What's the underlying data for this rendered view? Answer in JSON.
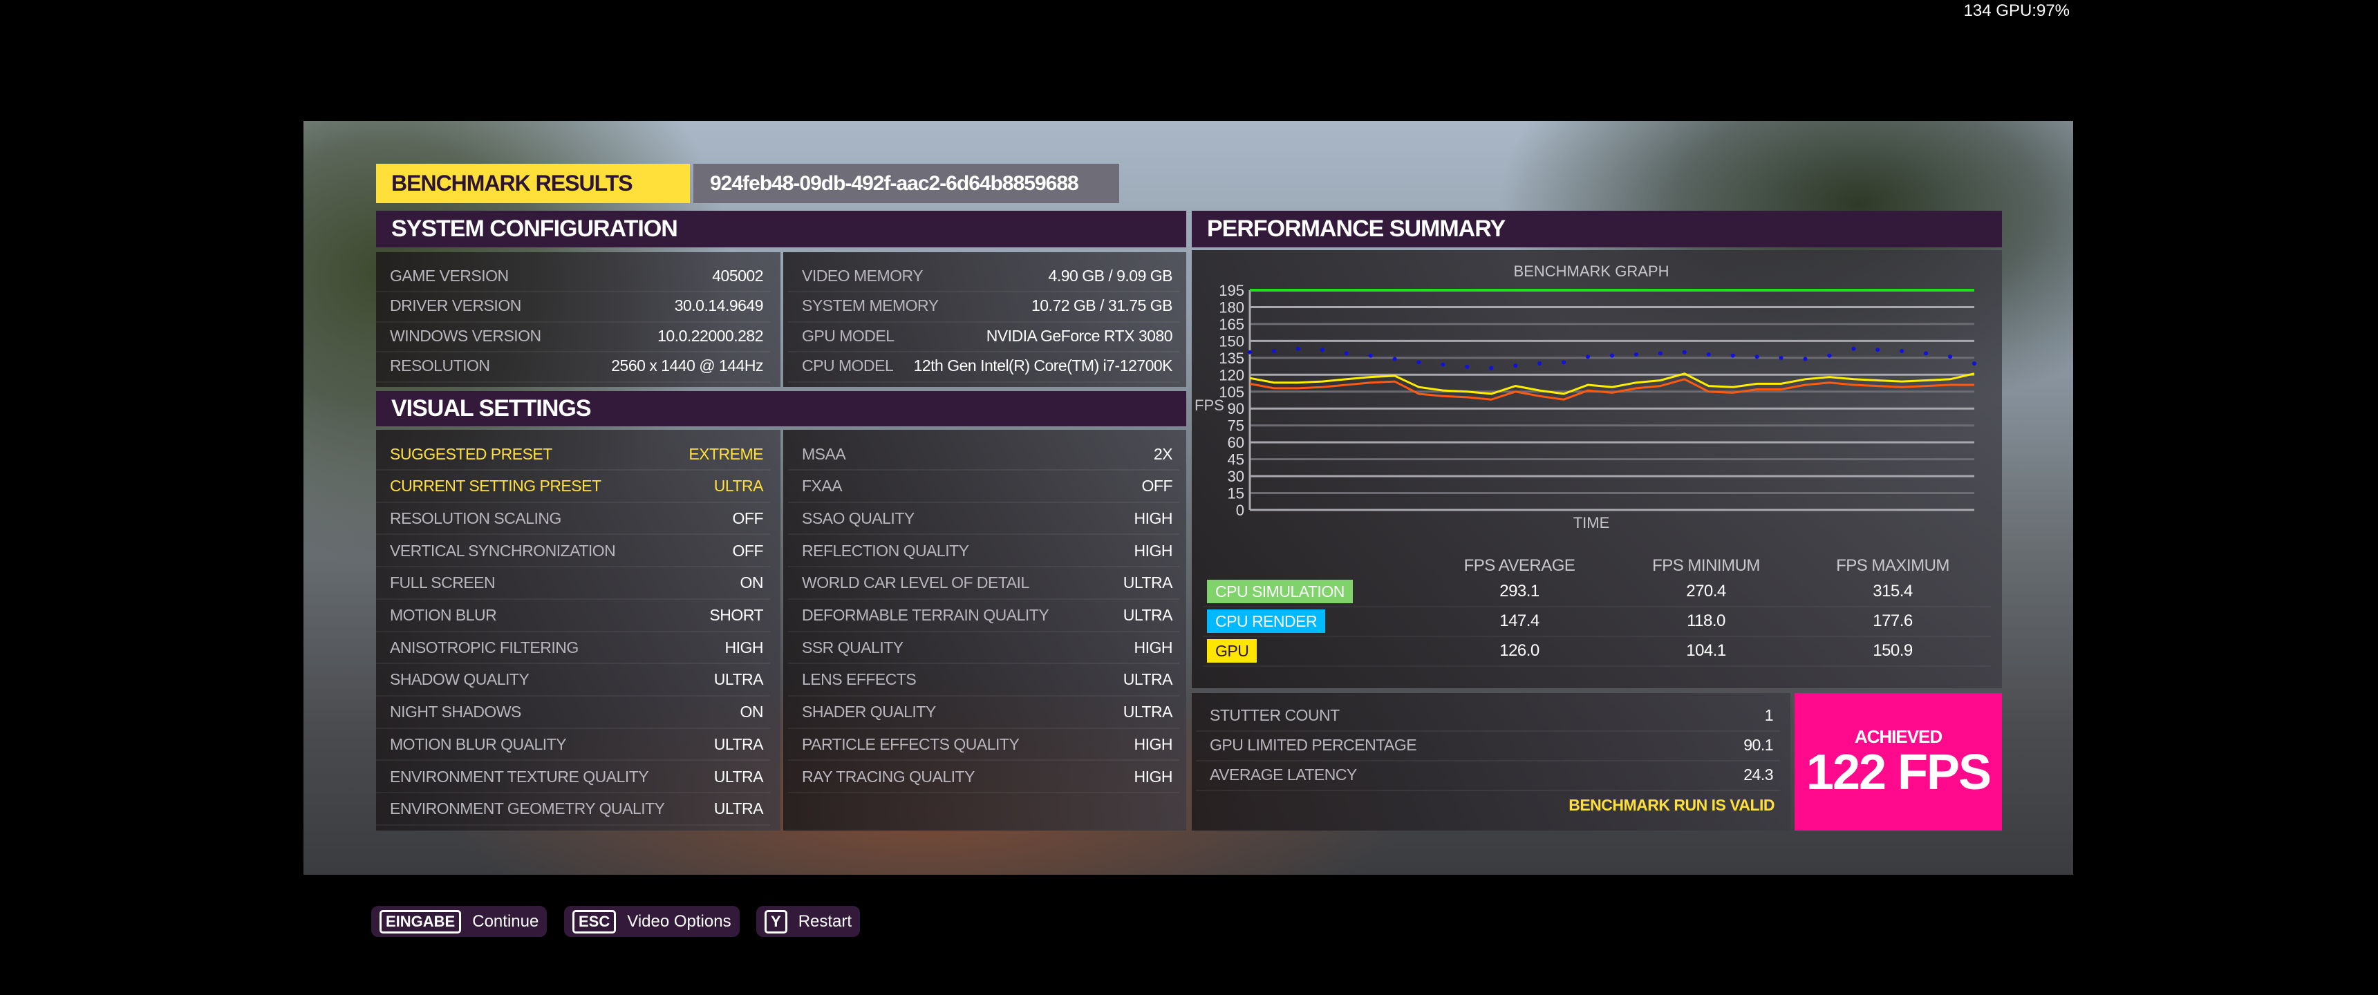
{
  "overlay": {
    "fps_gpu": "134 GPU:97%"
  },
  "header": {
    "title": "BENCHMARK RESULTS",
    "run_id": "924feb48-09db-492f-aac2-6d64b8859688"
  },
  "system_configuration": {
    "title": "SYSTEM CONFIGURATION",
    "left": [
      {
        "label": "GAME VERSION",
        "value": "405002"
      },
      {
        "label": "DRIVER VERSION",
        "value": "30.0.14.9649"
      },
      {
        "label": "WINDOWS VERSION",
        "value": "10.0.22000.282"
      },
      {
        "label": "RESOLUTION",
        "value": "2560 x 1440 @ 144Hz"
      }
    ],
    "right": [
      {
        "label": "VIDEO MEMORY",
        "value": "4.90 GB / 9.09 GB"
      },
      {
        "label": "SYSTEM MEMORY",
        "value": "10.72 GB / 31.75 GB"
      },
      {
        "label": "GPU MODEL",
        "value": "NVIDIA GeForce RTX 3080"
      },
      {
        "label": "CPU MODEL",
        "value": "12th Gen Intel(R) Core(TM) i7-12700K"
      }
    ]
  },
  "visual_settings": {
    "title": "VISUAL SETTINGS",
    "left": [
      {
        "label": "SUGGESTED PRESET",
        "value": "EXTREME",
        "highlight": true
      },
      {
        "label": "CURRENT SETTING PRESET",
        "value": "ULTRA",
        "highlight": true
      },
      {
        "label": "RESOLUTION SCALING",
        "value": "OFF"
      },
      {
        "label": "VERTICAL SYNCHRONIZATION",
        "value": "OFF"
      },
      {
        "label": "FULL SCREEN",
        "value": "ON"
      },
      {
        "label": "MOTION BLUR",
        "value": "SHORT"
      },
      {
        "label": "ANISOTROPIC FILTERING",
        "value": "HIGH"
      },
      {
        "label": "SHADOW QUALITY",
        "value": "ULTRA"
      },
      {
        "label": "NIGHT SHADOWS",
        "value": "ON"
      },
      {
        "label": "MOTION BLUR QUALITY",
        "value": "ULTRA"
      },
      {
        "label": "ENVIRONMENT TEXTURE QUALITY",
        "value": "ULTRA"
      },
      {
        "label": "ENVIRONMENT GEOMETRY QUALITY",
        "value": "ULTRA"
      }
    ],
    "right": [
      {
        "label": "MSAA",
        "value": "2X"
      },
      {
        "label": "FXAA",
        "value": "OFF"
      },
      {
        "label": "SSAO QUALITY",
        "value": "HIGH"
      },
      {
        "label": "REFLECTION QUALITY",
        "value": "HIGH"
      },
      {
        "label": "WORLD CAR LEVEL OF DETAIL",
        "value": "ULTRA"
      },
      {
        "label": "DEFORMABLE TERRAIN QUALITY",
        "value": "ULTRA"
      },
      {
        "label": "SSR QUALITY",
        "value": "HIGH"
      },
      {
        "label": "LENS EFFECTS",
        "value": "ULTRA"
      },
      {
        "label": "SHADER QUALITY",
        "value": "ULTRA"
      },
      {
        "label": "PARTICLE EFFECTS QUALITY",
        "value": "HIGH"
      },
      {
        "label": "RAY TRACING QUALITY",
        "value": "HIGH"
      }
    ]
  },
  "performance": {
    "title": "PERFORMANCE SUMMARY",
    "columns": [
      "FPS AVERAGE",
      "FPS MINIMUM",
      "FPS MAXIMUM"
    ],
    "rows": [
      {
        "label": "CPU SIMULATION",
        "color": "#7fd36a",
        "text_color": "#ffffff",
        "values": [
          "293.1",
          "270.4",
          "315.4"
        ]
      },
      {
        "label": "CPU RENDER",
        "color": "#00b9ff",
        "text_color": "#ffffff",
        "values": [
          "147.4",
          "118.0",
          "177.6"
        ]
      },
      {
        "label": "GPU",
        "color": "#ffe600",
        "text_color": "#2a1530",
        "values": [
          "126.0",
          "104.1",
          "150.9"
        ]
      }
    ],
    "stats": [
      {
        "label": "STUTTER COUNT",
        "value": "1"
      },
      {
        "label": "GPU LIMITED PERCENTAGE",
        "value": "90.1"
      },
      {
        "label": "AVERAGE LATENCY",
        "value": "24.3"
      }
    ],
    "valid_text": "BENCHMARK RUN IS VALID",
    "achieved_label": "ACHIEVED",
    "achieved_value": "122 FPS"
  },
  "chart_data": {
    "type": "line",
    "title": "BENCHMARK GRAPH",
    "xlabel": "TIME",
    "ylabel": "FPS",
    "ylim": [
      0,
      195
    ],
    "yticks": [
      0,
      15,
      30,
      45,
      60,
      75,
      90,
      105,
      120,
      135,
      150,
      165,
      180,
      195
    ],
    "grid": true,
    "series": [
      {
        "color": "#22e01e",
        "style": "line",
        "values": [
          195,
          195,
          195,
          195,
          195,
          195,
          195,
          195,
          195,
          195,
          195,
          195,
          195,
          195,
          195,
          195,
          195,
          195,
          195,
          195,
          195,
          195,
          195,
          195,
          195,
          195,
          195,
          195,
          195,
          195,
          195
        ]
      },
      {
        "color": "#1010e0",
        "style": "scatter",
        "values": [
          140,
          141,
          143,
          142,
          139,
          137,
          134,
          131,
          129,
          127,
          126,
          128,
          130,
          131,
          136,
          137,
          138,
          139,
          140,
          138,
          137,
          136,
          135,
          134,
          137,
          143,
          142,
          141,
          139,
          136,
          130
        ]
      },
      {
        "color": "#ffee00",
        "style": "line",
        "values": [
          117,
          113,
          113,
          114,
          116,
          118,
          119,
          109,
          106,
          105,
          103,
          110,
          106,
          103,
          111,
          109,
          113,
          115,
          121,
          110,
          109,
          112,
          112,
          116,
          118,
          116,
          115,
          114,
          115,
          116,
          121
        ]
      },
      {
        "color": "#ff5a10",
        "style": "line",
        "values": [
          112,
          108,
          108,
          109,
          111,
          113,
          114,
          103,
          101,
          100,
          98,
          105,
          101,
          98,
          106,
          104,
          108,
          110,
          116,
          105,
          104,
          107,
          107,
          111,
          113,
          111,
          110,
          109,
          110,
          111,
          111
        ]
      }
    ]
  },
  "footer": [
    {
      "key": "EINGABE",
      "label": "Continue"
    },
    {
      "key": "ESC",
      "label": "Video Options"
    },
    {
      "key": "Y",
      "label": "Restart"
    }
  ]
}
